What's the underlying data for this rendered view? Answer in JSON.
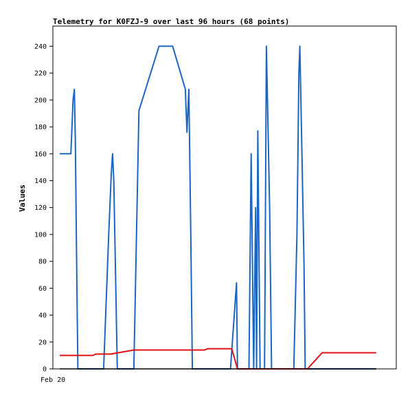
{
  "chart_data": {
    "type": "line",
    "title": "Telemetry for K0FZJ-9 over last 96 hours (68 points)",
    "xlabel": "",
    "ylabel": "Values",
    "x_tick_labels": [
      "Feb 20"
    ],
    "yticks": [
      0,
      20,
      40,
      60,
      80,
      100,
      120,
      140,
      160,
      180,
      200,
      220,
      240
    ],
    "ylim": [
      0,
      255
    ],
    "xlim": [
      0,
      100
    ],
    "grid": false,
    "legend": "none",
    "series": [
      {
        "color": "#1a66c2",
        "points": [
          [
            0,
            160
          ],
          [
            3.5,
            160
          ],
          [
            4.2,
            200
          ],
          [
            4.6,
            208
          ],
          [
            4.9,
            170
          ],
          [
            5.4,
            60
          ],
          [
            5.7,
            0
          ],
          [
            13.8,
            0
          ],
          [
            15.4,
            100
          ],
          [
            16.2,
            145
          ],
          [
            16.6,
            160
          ],
          [
            17.0,
            140
          ],
          [
            18.1,
            0
          ],
          [
            23.3,
            0
          ],
          [
            24.9,
            192
          ],
          [
            31.2,
            240
          ],
          [
            35.5,
            240
          ],
          [
            39.5,
            208
          ],
          [
            40.0,
            176
          ],
          [
            40.6,
            208
          ],
          [
            41.2,
            100
          ],
          [
            41.7,
            0
          ],
          [
            53.7,
            0
          ],
          [
            55.6,
            64
          ],
          [
            55.9,
            0
          ],
          [
            59.5,
            0
          ],
          [
            60.2,
            160
          ],
          [
            61.0,
            0
          ],
          [
            61.6,
            120
          ],
          [
            61.9,
            0
          ],
          [
            62.3,
            177
          ],
          [
            63.0,
            0
          ],
          [
            64.4,
            0
          ],
          [
            65.0,
            240
          ],
          [
            66.0,
            120
          ],
          [
            66.6,
            0
          ],
          [
            73.6,
            0
          ],
          [
            74.6,
            100
          ],
          [
            75.2,
            220
          ],
          [
            75.5,
            240
          ],
          [
            76.0,
            180
          ],
          [
            76.8,
            80
          ],
          [
            77.2,
            0
          ],
          [
            83.5,
            0
          ],
          [
            99.5,
            0
          ]
        ]
      },
      {
        "color": "#e01010",
        "points": [
          [
            0,
            10
          ],
          [
            10.4,
            10
          ],
          [
            11.3,
            11
          ],
          [
            16.0,
            11
          ],
          [
            23.3,
            14
          ],
          [
            45.5,
            14
          ],
          [
            46.5,
            15
          ],
          [
            54.1,
            15
          ],
          [
            55.9,
            0
          ],
          [
            77.9,
            0
          ],
          [
            82.5,
            12
          ],
          [
            99.5,
            12
          ]
        ]
      },
      {
        "color": "#000000",
        "points": [
          [
            0,
            0
          ],
          [
            99.5,
            0
          ]
        ]
      }
    ]
  }
}
